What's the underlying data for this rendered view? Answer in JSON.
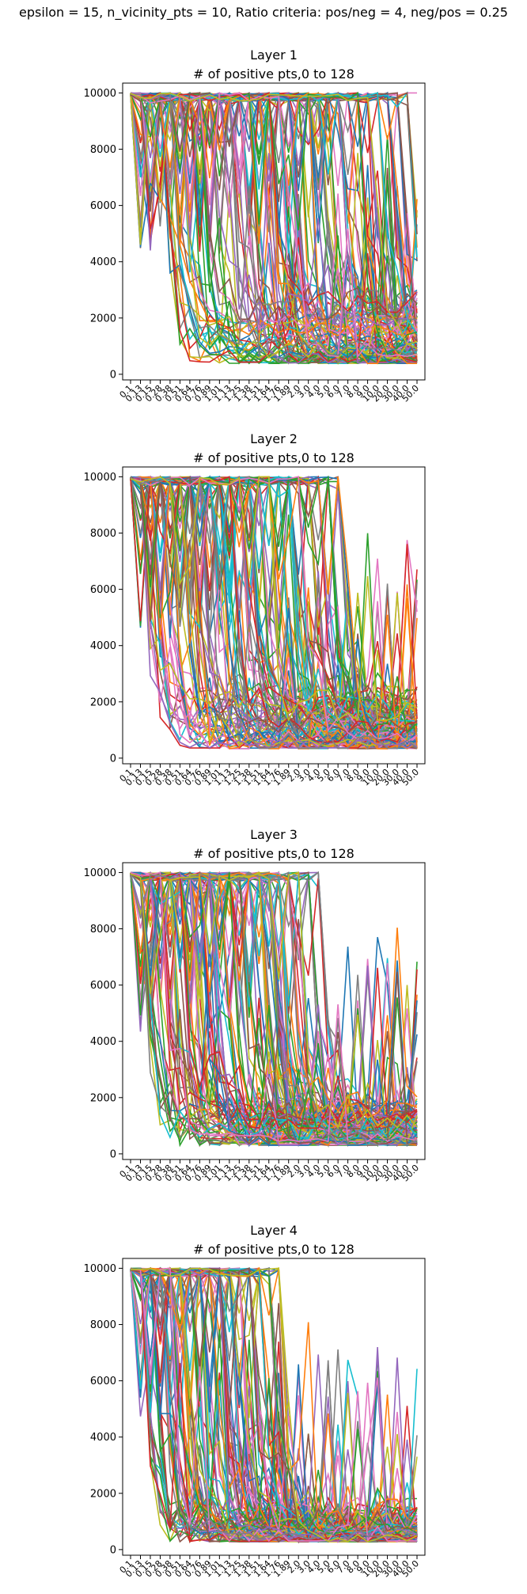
{
  "figure": {
    "suptitle": "epsilon = 15, n_vicinity_pts = 10, Ratio criteria: pos/neg = 4, neg/pos = 0.25"
  },
  "chart_data": [
    {
      "type": "line",
      "title": "Layer 1",
      "subtitle": "# of positive pts,0 to 128",
      "xlabel": "",
      "ylabel": "",
      "x_ticks": [
        "0.1",
        "0.13",
        "0.15",
        "0.28",
        "0.38",
        "0.51",
        "0.64",
        "0.76",
        "0.89",
        "1.01",
        "1.13",
        "1.25",
        "1.38",
        "1.51",
        "1.64",
        "1.76",
        "1.89",
        "2.0",
        "3.0",
        "4.0",
        "5.0",
        "6.0",
        "7.0",
        "8.0",
        "9.0",
        "10.0",
        "20.0",
        "30.0",
        "40.0",
        "50.0"
      ],
      "y_ticks": [
        0,
        2000,
        4000,
        6000,
        8000,
        10000
      ],
      "ylim": [
        -200,
        10350
      ],
      "n_series": 129,
      "series_pattern": {
        "start": 10000,
        "floor": [
          480,
          2600
        ],
        "drop_point_range": [
          3,
          29
        ],
        "max_drops": 5
      },
      "grid": false,
      "legend": "none"
    },
    {
      "type": "line",
      "title": "Layer 2",
      "subtitle": "# of positive pts,0 to 128",
      "xlabel": "",
      "ylabel": "",
      "x_ticks": [
        "0.1",
        "0.13",
        "0.15",
        "0.28",
        "0.38",
        "0.51",
        "0.64",
        "0.76",
        "0.89",
        "1.01",
        "1.13",
        "1.25",
        "1.38",
        "1.51",
        "1.64",
        "1.76",
        "1.89",
        "2.0",
        "3.0",
        "4.0",
        "5.0",
        "6.0",
        "7.0",
        "8.0",
        "9.0",
        "10.0",
        "20.0",
        "30.0",
        "40.0",
        "50.0"
      ],
      "y_ticks": [
        0,
        2000,
        4000,
        6000,
        8000,
        10000
      ],
      "ylim": [
        -200,
        10350
      ],
      "n_series": 129,
      "series_pattern": {
        "start": 10000,
        "floor": [
          420,
          2000
        ],
        "drop_point_range": [
          1,
          22
        ],
        "max_drops": 5
      },
      "grid": false,
      "legend": "none"
    },
    {
      "type": "line",
      "title": "Layer 3",
      "subtitle": "# of positive pts,0 to 128",
      "xlabel": "",
      "ylabel": "",
      "x_ticks": [
        "0.1",
        "0.13",
        "0.15",
        "0.28",
        "0.38",
        "0.51",
        "0.64",
        "0.76",
        "0.89",
        "1.01",
        "1.13",
        "1.25",
        "1.38",
        "1.51",
        "1.64",
        "1.76",
        "1.89",
        "2.0",
        "3.0",
        "4.0",
        "5.0",
        "6.0",
        "7.0",
        "8.0",
        "9.0",
        "10.0",
        "20.0",
        "30.0",
        "40.0",
        "50.0"
      ],
      "y_ticks": [
        0,
        2000,
        4000,
        6000,
        8000,
        10000
      ],
      "ylim": [
        -200,
        10350
      ],
      "n_series": 129,
      "series_pattern": {
        "start": 10000,
        "floor": [
          380,
          1600
        ],
        "drop_point_range": [
          1,
          20
        ],
        "max_drops": 5
      },
      "grid": false,
      "legend": "none"
    },
    {
      "type": "line",
      "title": "Layer 4",
      "subtitle": "# of positive pts,0 to 128",
      "xlabel": "",
      "ylabel": "",
      "x_ticks": [
        "0.1",
        "0.13",
        "0.15",
        "0.28",
        "0.38",
        "0.51",
        "0.64",
        "0.76",
        "0.89",
        "1.01",
        "1.13",
        "1.25",
        "1.38",
        "1.51",
        "1.64",
        "1.76",
        "1.89",
        "2.0",
        "3.0",
        "4.0",
        "5.0",
        "6.0",
        "7.0",
        "8.0",
        "9.0",
        "10.0",
        "20.0",
        "30.0",
        "40.0",
        "50.0"
      ],
      "y_ticks": [
        0,
        2000,
        4000,
        6000,
        8000,
        10000
      ],
      "ylim": [
        -200,
        10350
      ],
      "n_series": 129,
      "series_pattern": {
        "start": 10000,
        "floor": [
          350,
          1300
        ],
        "drop_point_range": [
          1,
          16
        ],
        "max_drops": 5
      },
      "grid": false,
      "legend": "none"
    }
  ],
  "colors": {
    "series_cycle": [
      "#1f77b4",
      "#ff7f0e",
      "#2ca02c",
      "#d62728",
      "#9467bd",
      "#8c564b",
      "#e377c2",
      "#7f7f7f",
      "#bcbd22",
      "#17becf"
    ],
    "axes": "#000000",
    "background": "#ffffff"
  }
}
